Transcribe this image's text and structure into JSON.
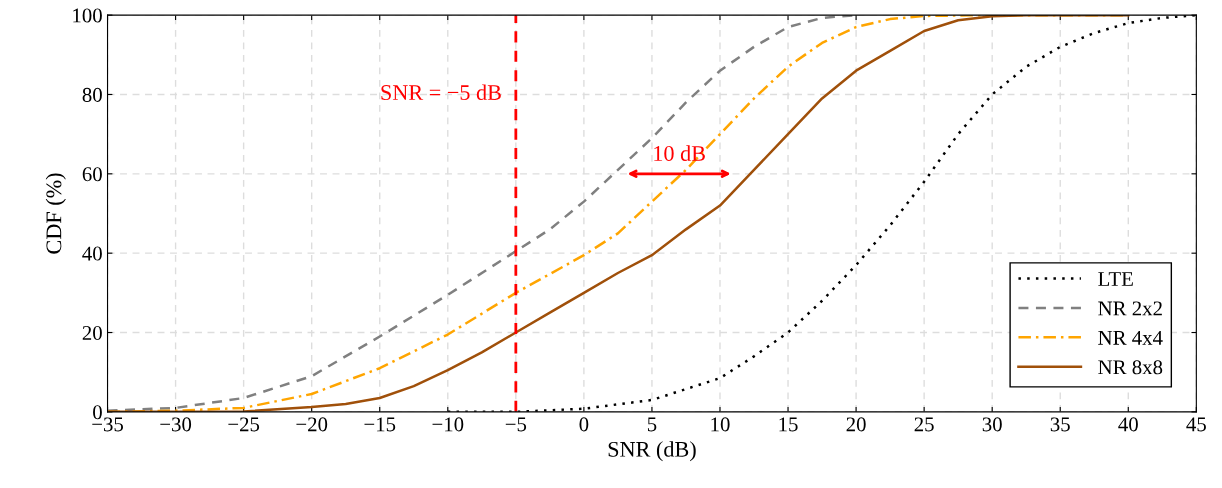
{
  "chart_data": {
    "type": "line",
    "xlabel": "SNR (dB)",
    "ylabel": "CDF (%)",
    "series": [
      {
        "name": "LTE",
        "color": "#000000",
        "line_style": "dotted",
        "x": [
          -10,
          -5,
          0,
          5,
          10,
          12.5,
          15,
          17.5,
          20,
          22.5,
          25,
          27.5,
          30,
          32.5,
          35,
          37.5,
          40,
          42.5,
          45
        ],
        "values": [
          0,
          0,
          0.8,
          3,
          8.5,
          14,
          20,
          28,
          37,
          47,
          58,
          70,
          80,
          87,
          92,
          95.5,
          98,
          99.3,
          100
        ]
      },
      {
        "name": "NR 2x2",
        "color": "#808080",
        "line_style": "dashed",
        "x": [
          -35,
          -30,
          -25,
          -20,
          -15,
          -10,
          -5,
          -2.5,
          0,
          2.5,
          5,
          7.5,
          10,
          12.5,
          15,
          17.5,
          20
        ],
        "values": [
          0.3,
          1,
          3.5,
          9,
          19,
          29.5,
          40.5,
          46,
          53,
          61,
          69,
          78,
          86,
          92,
          97,
          99.3,
          100
        ]
      },
      {
        "name": "NR 4x4",
        "color": "#ffa500",
        "line_style": "dashdot",
        "x": [
          -35,
          -30,
          -25,
          -20,
          -15,
          -10,
          -5,
          0,
          2.5,
          5,
          7.5,
          10,
          12.5,
          15,
          17.5,
          20,
          22.5,
          25,
          30,
          40
        ],
        "values": [
          0,
          0.3,
          1,
          4.5,
          11,
          19.5,
          30,
          39.5,
          45,
          53,
          61,
          70,
          79,
          87,
          93,
          97,
          99,
          99.8,
          100,
          100
        ]
      },
      {
        "name": "NR 8x8",
        "color": "#a0500a",
        "line_style": "solid",
        "x": [
          -35,
          -25,
          -20,
          -17.5,
          -15,
          -12.5,
          -10,
          -7.5,
          -5,
          -2.5,
          0,
          2.5,
          5,
          7.5,
          10,
          12.5,
          15,
          17.5,
          20,
          22.5,
          25,
          27.5,
          30,
          32.5,
          40
        ],
        "values": [
          0,
          0.1,
          1.2,
          2,
          3.5,
          6.5,
          10.5,
          15,
          20,
          25,
          30,
          35,
          39.5,
          46,
          52,
          61,
          70,
          79,
          86,
          91,
          96,
          98.7,
          99.7,
          100,
          100
        ]
      }
    ],
    "xlim": [
      -35,
      45
    ],
    "xticks": [
      {
        "value": -35,
        "label": "−35"
      },
      {
        "value": -30,
        "label": "−30"
      },
      {
        "value": -25,
        "label": "−25"
      },
      {
        "value": -20,
        "label": "−20"
      },
      {
        "value": -15,
        "label": "−15"
      },
      {
        "value": -10,
        "label": "−10"
      },
      {
        "value": -5,
        "label": "−5"
      },
      0,
      5,
      10,
      15,
      20,
      25,
      30,
      35,
      40,
      45
    ],
    "ylim": [
      0,
      100
    ],
    "yticks": [
      0,
      20,
      40,
      60,
      80,
      100
    ],
    "ref_lines": [
      {
        "axis": "x",
        "value": -5,
        "label": "SNR = −5 dB",
        "color": "#ff0000",
        "line_style": "dashed"
      }
    ],
    "annotations": [
      {
        "text": "10 dB",
        "x": 7,
        "y": 60
      }
    ],
    "grid": true,
    "legend": "bottom right"
  }
}
